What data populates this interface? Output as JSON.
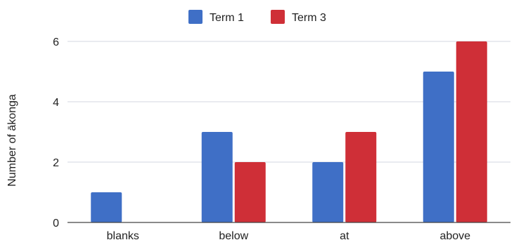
{
  "chart_data": {
    "type": "bar",
    "title": "",
    "xlabel": "",
    "ylabel": "Number of ākonga",
    "categories": [
      "blanks",
      "below",
      "at",
      "above"
    ],
    "series": [
      {
        "name": "Term 1",
        "values": [
          1,
          3,
          2,
          5
        ],
        "color": "#3f6fc6"
      },
      {
        "name": "Term 3",
        "values": [
          0,
          2,
          3,
          6
        ],
        "color": "#cf2f37"
      }
    ],
    "ylim": [
      0,
      6
    ],
    "yticks": [
      0,
      2,
      4,
      6
    ],
    "grid": true,
    "legend": "top-center"
  }
}
